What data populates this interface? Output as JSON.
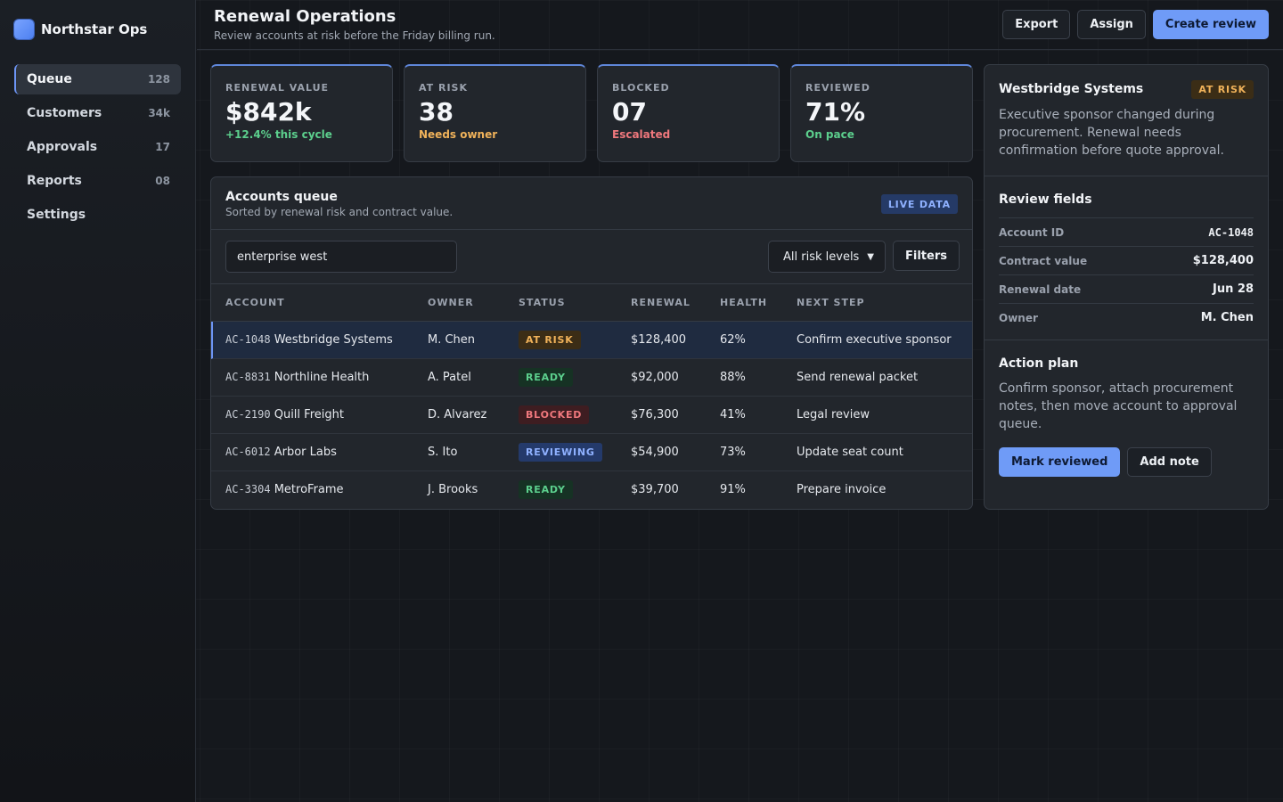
{
  "brand": {
    "name": "Northstar Ops"
  },
  "nav": [
    {
      "label": "Queue",
      "count": "128"
    },
    {
      "label": "Customers",
      "count": "34k"
    },
    {
      "label": "Approvals",
      "count": "17"
    },
    {
      "label": "Reports",
      "count": "08"
    },
    {
      "label": "Settings",
      "count": ""
    }
  ],
  "header": {
    "title": "Renewal Operations",
    "subtitle": "Review accounts at risk before the Friday billing run.",
    "export_label": "Export",
    "assign_label": "Assign",
    "create_label": "Create review"
  },
  "stats": [
    {
      "label": "RENEWAL VALUE",
      "value": "$842k",
      "note": "+12.4% this cycle",
      "note_color": "#5ccf8d"
    },
    {
      "label": "AT RISK",
      "value": "38",
      "note": "Needs owner",
      "note_color": "#f0b25a"
    },
    {
      "label": "BLOCKED",
      "value": "07",
      "note": "Escalated",
      "note_color": "#f0787d"
    },
    {
      "label": "REVIEWED",
      "value": "71%",
      "note": "On pace",
      "note_color": "#5ccf8d"
    }
  ],
  "queue": {
    "title": "Accounts queue",
    "subtitle": "Sorted by renewal risk and contract value.",
    "live_badge": "LIVE DATA",
    "search_value": "enterprise west",
    "risk_filter": "All risk levels",
    "filters_label": "Filters",
    "columns": [
      "ACCOUNT",
      "OWNER",
      "STATUS",
      "RENEWAL",
      "HEALTH",
      "NEXT STEP"
    ],
    "rows": [
      {
        "id": "AC-1048",
        "name": "Westbridge Systems",
        "owner": "M. Chen",
        "status": "AT RISK",
        "renewal": "$128,400",
        "health": "62%",
        "next": "Confirm executive sponsor"
      },
      {
        "id": "AC-8831",
        "name": "Northline Health",
        "owner": "A. Patel",
        "status": "READY",
        "renewal": "$92,000",
        "health": "88%",
        "next": "Send renewal packet"
      },
      {
        "id": "AC-2190",
        "name": "Quill Freight",
        "owner": "D. Alvarez",
        "status": "BLOCKED",
        "renewal": "$76,300",
        "health": "41%",
        "next": "Legal review"
      },
      {
        "id": "AC-6012",
        "name": "Arbor Labs",
        "owner": "S. Ito",
        "status": "REVIEWING",
        "renewal": "$54,900",
        "health": "73%",
        "next": "Update seat count"
      },
      {
        "id": "AC-3304",
        "name": "MetroFrame",
        "owner": "J. Brooks",
        "status": "READY",
        "renewal": "$39,700",
        "health": "91%",
        "next": "Prepare invoice"
      }
    ]
  },
  "detail": {
    "account_name": "Westbridge Systems",
    "status": "AT RISK",
    "summary": "Executive sponsor changed during procurement. Renewal needs confirmation before quote approval.",
    "fields_title": "Review fields",
    "fields": [
      {
        "label": "Account ID",
        "value": "AC-1048"
      },
      {
        "label": "Contract value",
        "value": "$128,400"
      },
      {
        "label": "Renewal date",
        "value": "Jun 28"
      },
      {
        "label": "Owner",
        "value": "M. Chen"
      }
    ],
    "plan_title": "Action plan",
    "plan_text": "Confirm sponsor, attach procurement notes, then move account to approval queue.",
    "mark_label": "Mark reviewed",
    "note_label": "Add note"
  }
}
